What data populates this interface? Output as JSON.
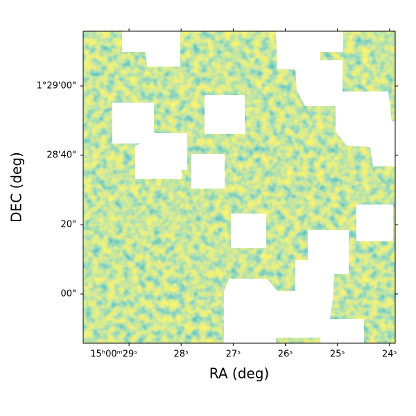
{
  "chart_data": {
    "type": "image",
    "xlabel": "RA (deg)",
    "ylabel": "DEC (deg)",
    "xlim": [
      29.88,
      23.89
    ],
    "xticks": [
      {
        "value": 29,
        "label": "15ʰ00ᵐ29ˢ"
      },
      {
        "value": 28,
        "label": "28ˢ"
      },
      {
        "value": 27,
        "label": "27ˢ"
      },
      {
        "value": 26,
        "label": "26ˢ"
      },
      {
        "value": 25,
        "label": "25ˢ"
      },
      {
        "value": 24,
        "label": "24ˢ"
      }
    ],
    "ylim": [
      -14.2,
      75.8
    ],
    "yticks": [
      {
        "value": 0,
        "label": "00\""
      },
      {
        "value": 20,
        "label": "20\""
      },
      {
        "value": 40,
        "label": "28'40\""
      },
      {
        "value": 60,
        "label": "1°29'00\""
      }
    ]
  }
}
